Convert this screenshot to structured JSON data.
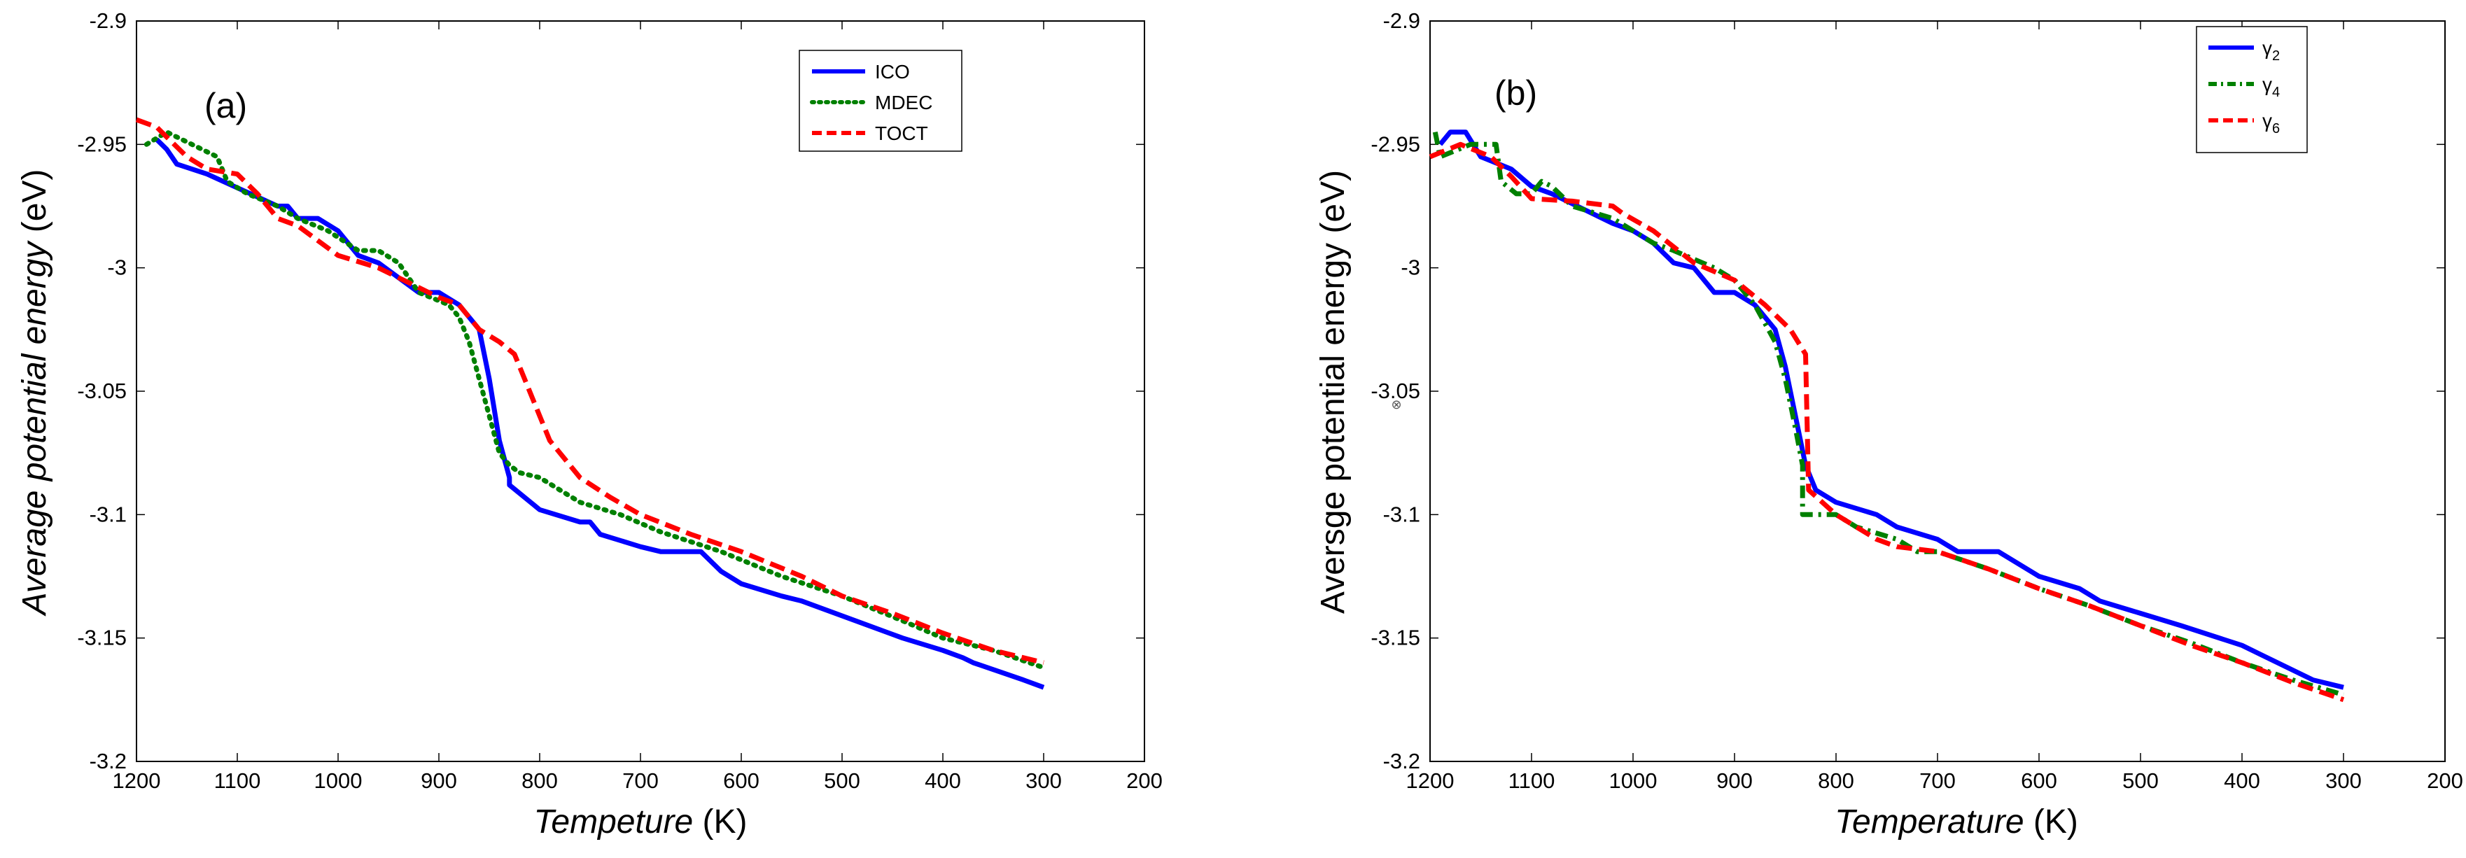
{
  "chart_data": [
    {
      "type": "line",
      "panel_label": "(a)",
      "xlabel_italic": "Tempeture",
      "xlabel_unit": " (K)",
      "ylabel_italic": "Average potential energy",
      "ylabel_unit": " (eV)",
      "xlim": [
        1200,
        200
      ],
      "ylim": [
        -3.2,
        -2.9
      ],
      "x_ticks": [
        "1200",
        "1100",
        "1000",
        "900",
        "800",
        "700",
        "600",
        "500",
        "400",
        "300",
        "200"
      ],
      "y_ticks": [
        "-2.9",
        "-2.95",
        "-3",
        "-3.05",
        "-3.1",
        "-3.15",
        "-3.2"
      ],
      "legend": "top-right",
      "series": [
        {
          "name": "ICO",
          "color": "#0000ff",
          "style": "solid",
          "x": [
            1180,
            1170,
            1160,
            1130,
            1060,
            1050,
            1040,
            1020,
            1000,
            980,
            960,
            920,
            900,
            880,
            860,
            850,
            840,
            830,
            830,
            800,
            760,
            750,
            740,
            700,
            680,
            640,
            620,
            600,
            560,
            540,
            440,
            400,
            380,
            370,
            320,
            300
          ],
          "y": [
            -2.948,
            -2.952,
            -2.958,
            -2.962,
            -2.975,
            -2.975,
            -2.98,
            -2.98,
            -2.985,
            -2.995,
            -2.998,
            -3.01,
            -3.01,
            -3.015,
            -3.025,
            -3.045,
            -3.07,
            -3.085,
            -3.088,
            -3.098,
            -3.103,
            -3.103,
            -3.108,
            -3.113,
            -3.115,
            -3.115,
            -3.123,
            -3.128,
            -3.133,
            -3.135,
            -3.15,
            -3.155,
            -3.158,
            -3.16,
            -3.167,
            -3.17
          ]
        },
        {
          "name": "MDEC",
          "color": "#008000",
          "style": "dotted",
          "x": [
            1190,
            1170,
            1120,
            1110,
            1090,
            1060,
            1040,
            1010,
            980,
            960,
            940,
            920,
            890,
            880,
            870,
            860,
            850,
            840,
            830,
            820,
            800,
            780,
            760,
            720,
            680,
            620,
            560,
            500,
            440,
            400,
            350,
            300
          ],
          "y": [
            -2.95,
            -2.945,
            -2.955,
            -2.965,
            -2.97,
            -2.975,
            -2.98,
            -2.985,
            -2.993,
            -2.993,
            -2.998,
            -3.01,
            -3.015,
            -3.02,
            -3.03,
            -3.045,
            -3.06,
            -3.075,
            -3.08,
            -3.083,
            -3.085,
            -3.09,
            -3.095,
            -3.1,
            -3.107,
            -3.115,
            -3.125,
            -3.133,
            -3.143,
            -3.15,
            -3.155,
            -3.162
          ]
        },
        {
          "name": "TOCT",
          "color": "#ff0000",
          "style": "dashed",
          "x": [
            1200,
            1180,
            1150,
            1130,
            1100,
            1080,
            1070,
            1060,
            1040,
            1000,
            960,
            900,
            880,
            870,
            860,
            840,
            825,
            810,
            800,
            790,
            760,
            730,
            700,
            650,
            600,
            540,
            500,
            450,
            400,
            350,
            300
          ],
          "y": [
            -2.94,
            -2.943,
            -2.955,
            -2.96,
            -2.962,
            -2.97,
            -2.975,
            -2.98,
            -2.983,
            -2.995,
            -3.0,
            -3.012,
            -3.015,
            -3.02,
            -3.025,
            -3.03,
            -3.035,
            -3.05,
            -3.06,
            -3.07,
            -3.085,
            -3.093,
            -3.1,
            -3.108,
            -3.115,
            -3.125,
            -3.133,
            -3.14,
            -3.148,
            -3.155,
            -3.16
          ]
        }
      ]
    },
    {
      "type": "line",
      "panel_label": "(b)",
      "xlabel_italic": "Temperature",
      "xlabel_unit": "  (K)",
      "ylabel_italic": "",
      "ylabel_unit": "Aversge potential energy (eV)",
      "xlim": [
        1200,
        200
      ],
      "ylim": [
        -3.2,
        -2.9
      ],
      "x_ticks": [
        "1200",
        "1100",
        "1000",
        "900",
        "800",
        "700",
        "600",
        "500",
        "400",
        "300",
        "200"
      ],
      "y_ticks": [
        "-2.9",
        "-2.95",
        "-3",
        "-3.05",
        "-3.1",
        "-3.15",
        "-3.2"
      ],
      "legend": "top-right",
      "series": [
        {
          "name": "γ2",
          "name_base": "γ",
          "name_sub": "2",
          "color": "#0000ff",
          "style": "solid",
          "x": [
            1190,
            1180,
            1165,
            1150,
            1120,
            1100,
            1080,
            1040,
            1020,
            1000,
            980,
            960,
            940,
            920,
            900,
            880,
            860,
            850,
            840,
            830,
            820,
            800,
            760,
            740,
            700,
            680,
            640,
            620,
            600,
            560,
            540,
            500,
            460,
            400,
            380,
            330,
            300
          ],
          "y": [
            -2.95,
            -2.945,
            -2.945,
            -2.955,
            -2.96,
            -2.967,
            -2.97,
            -2.978,
            -2.982,
            -2.985,
            -2.99,
            -2.998,
            -3.0,
            -3.01,
            -3.01,
            -3.015,
            -3.025,
            -3.04,
            -3.06,
            -3.08,
            -3.09,
            -3.095,
            -3.1,
            -3.105,
            -3.11,
            -3.115,
            -3.115,
            -3.12,
            -3.125,
            -3.13,
            -3.135,
            -3.14,
            -3.145,
            -3.153,
            -3.157,
            -3.167,
            -3.17
          ]
        },
        {
          "name": "γ4",
          "name_base": "γ",
          "name_sub": "4",
          "color": "#008000",
          "style": "dashdot",
          "x": [
            1195,
            1190,
            1160,
            1135,
            1130,
            1115,
            1100,
            1090,
            1080,
            1060,
            1020,
            980,
            960,
            920,
            900,
            880,
            860,
            850,
            840,
            833,
            833,
            830,
            800,
            780,
            740,
            720,
            700,
            650,
            600,
            550,
            500,
            450,
            400,
            350,
            300
          ],
          "y": [
            -2.945,
            -2.955,
            -2.95,
            -2.95,
            -2.965,
            -2.97,
            -2.97,
            -2.965,
            -2.967,
            -2.975,
            -2.98,
            -2.99,
            -2.993,
            -3.0,
            -3.005,
            -3.015,
            -3.03,
            -3.045,
            -3.065,
            -3.08,
            -3.1,
            -3.1,
            -3.1,
            -3.105,
            -3.11,
            -3.115,
            -3.115,
            -3.122,
            -3.13,
            -3.137,
            -3.145,
            -3.152,
            -3.16,
            -3.167,
            -3.173
          ]
        },
        {
          "name": "γ6",
          "name_base": "γ",
          "name_sub": "6",
          "color": "#ff0000",
          "style": "dashed",
          "x": [
            1200,
            1170,
            1140,
            1120,
            1100,
            1060,
            1020,
            1010,
            980,
            940,
            900,
            870,
            845,
            830,
            827,
            800,
            760,
            740,
            700,
            650,
            600,
            550,
            500,
            450,
            400,
            350,
            300
          ],
          "y": [
            -2.955,
            -2.95,
            -2.955,
            -2.963,
            -2.972,
            -2.973,
            -2.975,
            -2.978,
            -2.985,
            -2.998,
            -3.005,
            -3.015,
            -3.025,
            -3.035,
            -3.09,
            -3.1,
            -3.11,
            -3.113,
            -3.115,
            -3.122,
            -3.13,
            -3.137,
            -3.145,
            -3.153,
            -3.16,
            -3.168,
            -3.175
          ]
        }
      ]
    }
  ]
}
